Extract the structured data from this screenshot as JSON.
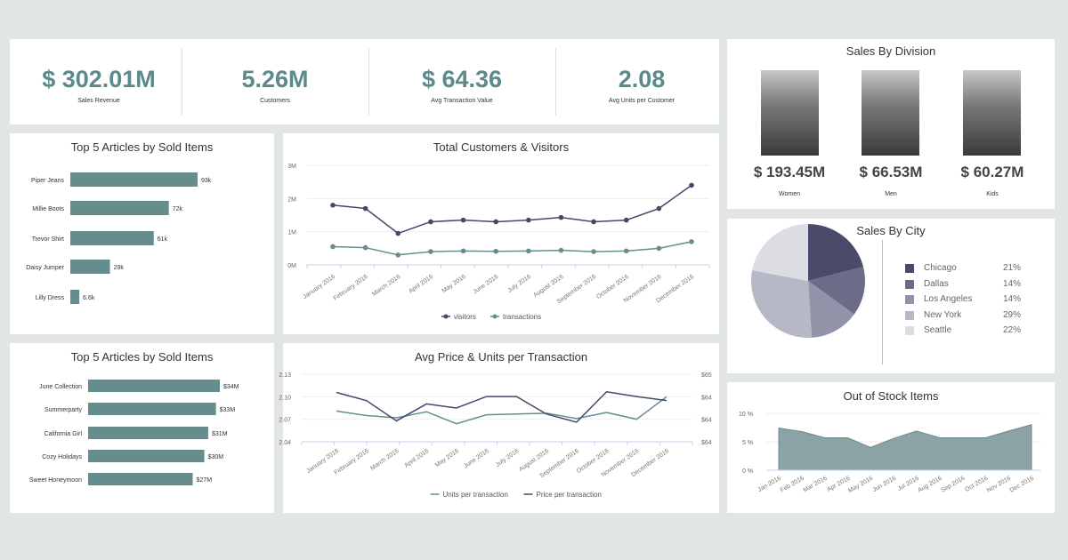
{
  "kpis": [
    {
      "value": "$ 302.01M",
      "label": "Sales Revenue"
    },
    {
      "value": "5.26M",
      "label": "Customers"
    },
    {
      "value": "$ 64.36",
      "label": "Avg Transaction Value"
    },
    {
      "value": "2.08",
      "label": "Avg Units per Customer"
    }
  ],
  "division": {
    "title": "Sales By Division",
    "items": [
      {
        "value": "$ 193.45M",
        "label": "Women"
      },
      {
        "value": "$ 66.53M",
        "label": "Men"
      },
      {
        "value": "$ 60.27M",
        "label": "Kids"
      }
    ]
  },
  "colors": {
    "teal": "#658d8e",
    "navy": "#46476a"
  },
  "chart_data": [
    {
      "type": "bar",
      "title": "Top 5 Articles by Sold Items",
      "categories": [
        "Piper Jeans",
        "Millie Boots",
        "Trevor Shirt",
        "Daisy Jumper",
        "Lilly Dress"
      ],
      "values": [
        93,
        72,
        61,
        29,
        6.6
      ],
      "labels": [
        "93k",
        "72k",
        "61k",
        "29k",
        "6.6k"
      ],
      "xlim": [
        0,
        93
      ]
    },
    {
      "type": "line",
      "title": "Total Customers & Visitors",
      "categories": [
        "January 2016",
        "February 2016",
        "March 2016",
        "April 2016",
        "May 2016",
        "June 2016",
        "July 2016",
        "August 2016",
        "September 2016",
        "October 2016",
        "November 2016",
        "December 2016"
      ],
      "yticks": [
        "0M",
        "1M",
        "2M",
        "3M"
      ],
      "ylim": [
        0,
        3
      ],
      "series": [
        {
          "name": "visitors",
          "color": "#46476a",
          "values": [
            1.8,
            1.7,
            0.95,
            1.3,
            1.35,
            1.3,
            1.35,
            1.43,
            1.3,
            1.35,
            1.7,
            2.4
          ]
        },
        {
          "name": "transactions",
          "color": "#658d8e",
          "values": [
            0.55,
            0.52,
            0.3,
            0.4,
            0.42,
            0.41,
            0.42,
            0.44,
            0.4,
            0.42,
            0.5,
            0.7
          ]
        }
      ]
    },
    {
      "type": "bar",
      "title": "Top 5 Articles by Sold Items",
      "categories": [
        "June Collection",
        "Summerparty",
        "California Girl",
        "Cozy Holidays",
        "Sweet Honeymoon"
      ],
      "values": [
        34,
        33,
        31,
        30,
        27
      ],
      "labels": [
        "$34M",
        "$33M",
        "$31M",
        "$30M",
        "$27M"
      ],
      "xlim": [
        0,
        34
      ]
    },
    {
      "type": "line",
      "title": "Avg Price & Units per Transaction",
      "categories": [
        "January 2016",
        "February 2016",
        "March 2016",
        "April 2016",
        "May 2016",
        "June 2016",
        "July 2016",
        "August 2016",
        "September 2016",
        "October 2016",
        "November 2016",
        "December 2016"
      ],
      "yticks": [
        "2.04",
        "2.07",
        "2.10",
        "2.13"
      ],
      "ylim": [
        2.04,
        2.13
      ],
      "yticks_right": [
        "$64",
        "$64",
        "$64",
        "$65"
      ],
      "ylim_right": [
        64,
        65
      ],
      "series": [
        {
          "name": "Units per transaction",
          "color": "#658d8e",
          "axis": "left",
          "values": [
            2.081,
            2.075,
            2.072,
            2.08,
            2.064,
            2.076,
            2.077,
            2.078,
            2.071,
            2.079,
            2.07,
            2.1
          ]
        },
        {
          "name": "Price per transaction",
          "color": "#46476a",
          "axis": "right",
          "values": [
            64.73,
            64.61,
            64.31,
            64.56,
            64.5,
            64.67,
            64.67,
            64.41,
            64.29,
            64.74,
            64.67,
            64.61
          ]
        }
      ]
    },
    {
      "type": "pie",
      "title": "Sales By City",
      "categories": [
        "Chicago",
        "Dallas",
        "Los Angeles",
        "New York",
        "Seattle"
      ],
      "values": [
        21,
        14,
        14,
        29,
        22
      ],
      "labels": [
        "21%",
        "14%",
        "14%",
        "29%",
        "22%"
      ],
      "colors": [
        "#4a4b6b",
        "#6b6d88",
        "#9193a8",
        "#b7b8c6",
        "#dcdce3"
      ]
    },
    {
      "type": "area",
      "title": "Out of Stock Items",
      "categories": [
        "Jan 2016",
        "Feb 2016",
        "Mar 2016",
        "Apr 2016",
        "May 2016",
        "Jun 2016",
        "Jul 2016",
        "Aug 2016",
        "Sep 2016",
        "Oct 2016",
        "Nov 2016",
        "Dec 2016"
      ],
      "yticks": [
        "0 %",
        "5 %",
        "10 %"
      ],
      "ylim": [
        0,
        10
      ],
      "values": [
        7.4,
        6.8,
        5.7,
        5.7,
        4.0,
        5.6,
        6.9,
        5.7,
        5.7,
        5.7,
        6.9,
        8.0
      ],
      "color": "#8ba3a4"
    }
  ]
}
